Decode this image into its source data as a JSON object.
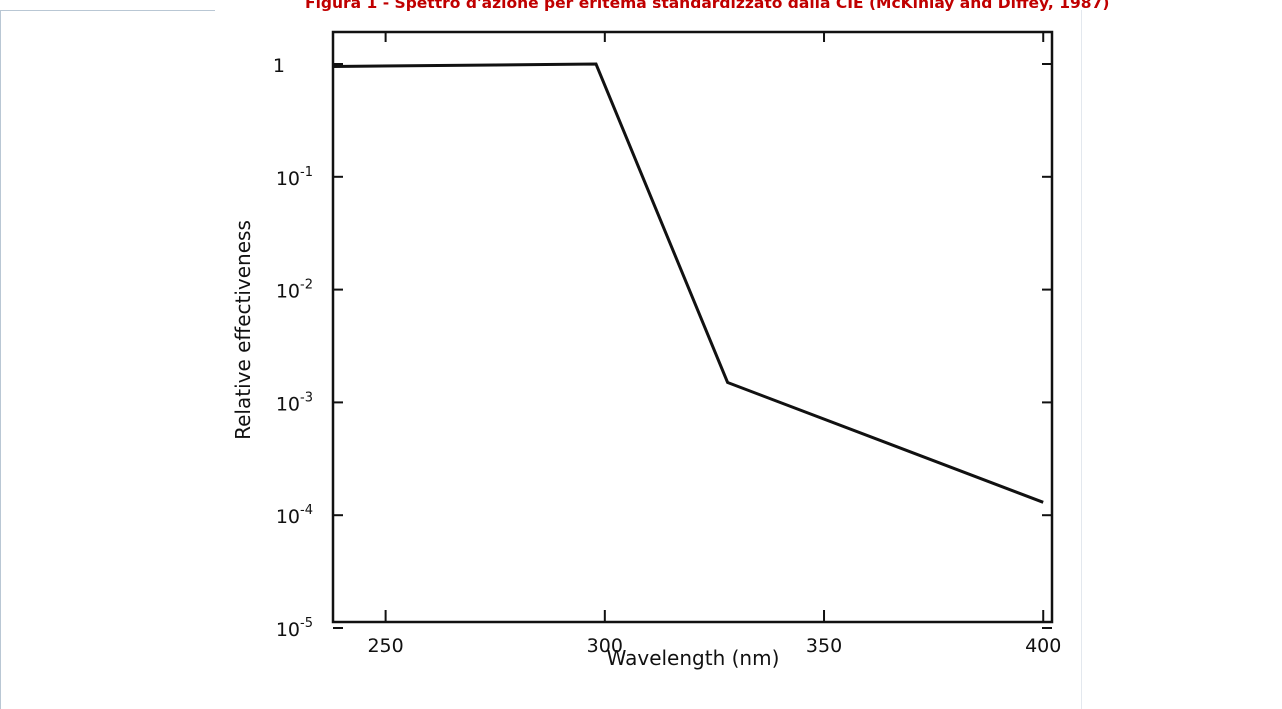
{
  "caption": "Figura 1 - Spettro d'azione per eritema standardizzato dalla CIE (McKinlay and Diffey, 1987)",
  "chart_data": {
    "type": "line",
    "title": "",
    "xlabel": "Wavelength (nm)",
    "ylabel": "Relative effectiveness",
    "xlim": [
      238,
      402
    ],
    "ylim": [
      1e-05,
      1.6
    ],
    "yscale": "log",
    "grid": false,
    "x_ticks": [
      250,
      300,
      350,
      400
    ],
    "x_tick_labels": [
      "250",
      "300",
      "350",
      "400"
    ],
    "y_ticks": [
      1,
      0.1,
      0.01,
      0.001,
      0.0001,
      1e-05
    ],
    "y_tick_labels": [
      {
        "base": "1",
        "exp": ""
      },
      {
        "base": "10",
        "exp": "-1"
      },
      {
        "base": "10",
        "exp": "-2"
      },
      {
        "base": "10",
        "exp": "-3"
      },
      {
        "base": "10",
        "exp": "-4"
      },
      {
        "base": "10",
        "exp": "-5"
      }
    ],
    "series": [
      {
        "color": "#111111",
        "points": [
          [
            238,
            0.95
          ],
          [
            298,
            1.0
          ],
          [
            328,
            0.0015
          ],
          [
            400,
            0.00013
          ]
        ]
      }
    ]
  }
}
